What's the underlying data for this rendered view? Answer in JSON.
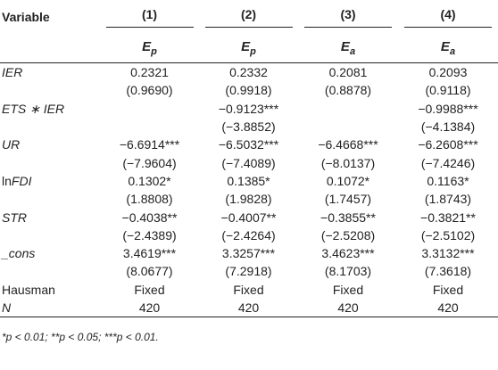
{
  "header": {
    "variable_label": "Variable",
    "models": [
      "(1)",
      "(2)",
      "(3)",
      "(4)"
    ],
    "dependents": [
      {
        "base": "E",
        "sub": "p"
      },
      {
        "base": "E",
        "sub": "p"
      },
      {
        "base": "E",
        "sub": "a"
      },
      {
        "base": "E",
        "sub": "a"
      }
    ]
  },
  "rows": [
    {
      "label_parts": [
        {
          "text": "IER",
          "italic": true
        }
      ],
      "values": [
        "0.2321",
        "0.2332",
        "0.2081",
        "0.2093"
      ]
    },
    {
      "label_parts": [],
      "values": [
        "(0.9690)",
        "(0.9918)",
        "(0.8878)",
        "(0.9118)"
      ]
    },
    {
      "label_parts": [
        {
          "text": "ETS ∗ IER",
          "italic": true
        }
      ],
      "values": [
        "",
        "−0.9123***",
        "",
        "−0.9988***"
      ]
    },
    {
      "label_parts": [],
      "values": [
        "",
        "(−3.8852)",
        "",
        "(−4.1384)"
      ]
    },
    {
      "label_parts": [
        {
          "text": "UR",
          "italic": true
        }
      ],
      "values": [
        "−6.6914***",
        "−6.5032***",
        "−6.4668***",
        "−6.2608***"
      ]
    },
    {
      "label_parts": [],
      "values": [
        "(−7.9604)",
        "(−7.4089)",
        "(−8.0137)",
        "(−7.4246)"
      ]
    },
    {
      "label_parts": [
        {
          "text": "ln",
          "italic": false
        },
        {
          "text": "FDI",
          "italic": true
        }
      ],
      "values": [
        "0.1302*",
        "0.1385*",
        "0.1072*",
        "0.1163*"
      ]
    },
    {
      "label_parts": [],
      "values": [
        "(1.8808)",
        "(1.9828)",
        "(1.7457)",
        "(1.8743)"
      ]
    },
    {
      "label_parts": [
        {
          "text": "STR",
          "italic": true
        }
      ],
      "values": [
        "−0.4038**",
        "−0.4007**",
        "−0.3855**",
        "−0.3821**"
      ]
    },
    {
      "label_parts": [],
      "values": [
        "(−2.4389)",
        "(−2.4264)",
        "(−2.5208)",
        "(−2.5102)"
      ]
    },
    {
      "label_parts": [
        {
          "text": "_cons",
          "italic": true
        }
      ],
      "values": [
        "3.4619***",
        "3.3257***",
        "3.4623***",
        "3.3132***"
      ]
    },
    {
      "label_parts": [],
      "values": [
        "(8.0677)",
        "(7.2918)",
        "(8.1703)",
        "(7.3618)"
      ]
    },
    {
      "label_parts": [
        {
          "text": "Hausman",
          "italic": false
        }
      ],
      "values": [
        "Fixed",
        "Fixed",
        "Fixed",
        "Fixed"
      ]
    },
    {
      "label_parts": [
        {
          "text": "N",
          "italic": true
        }
      ],
      "values": [
        "420",
        "420",
        "420",
        "420"
      ]
    }
  ],
  "footnote": "*p < 0.01; **p < 0.05; ***p < 0.01."
}
